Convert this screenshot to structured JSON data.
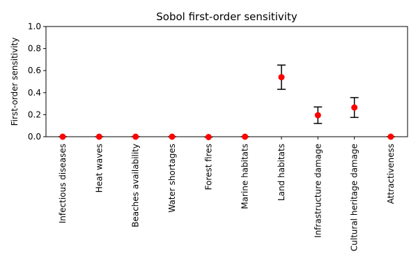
{
  "chart_data": {
    "type": "scatter",
    "title": "Sobol first-order sensitivity",
    "xlabel": "",
    "ylabel": "First-order sensitivity",
    "ylim": [
      0,
      1.0
    ],
    "yticks": [
      "0.0",
      "0.2",
      "0.4",
      "0.6",
      "0.8",
      "1.0"
    ],
    "categories": [
      "Infectious diseases",
      "Heat waves",
      "Beaches availability",
      "Water shortages",
      "Forest fires",
      "Marine habitats",
      "Land habitats",
      "Infrastructure damage",
      "Cultural heritage damage",
      "Attractiveness"
    ],
    "values": [
      0.0,
      0.0,
      0.0,
      0.0,
      -0.003,
      0.0,
      0.54,
      0.195,
      0.265,
      0.0
    ],
    "error_low": [
      0.0,
      0.0,
      0.0,
      0.0,
      0.0,
      0.0,
      0.43,
      0.12,
      0.175,
      0.0
    ],
    "error_high": [
      0.0,
      0.0,
      0.0,
      0.0,
      0.0,
      0.0,
      0.65,
      0.27,
      0.355,
      0.0
    ],
    "grid": false,
    "marker_color": "#ff0000",
    "errorbar_color": "#000000"
  }
}
